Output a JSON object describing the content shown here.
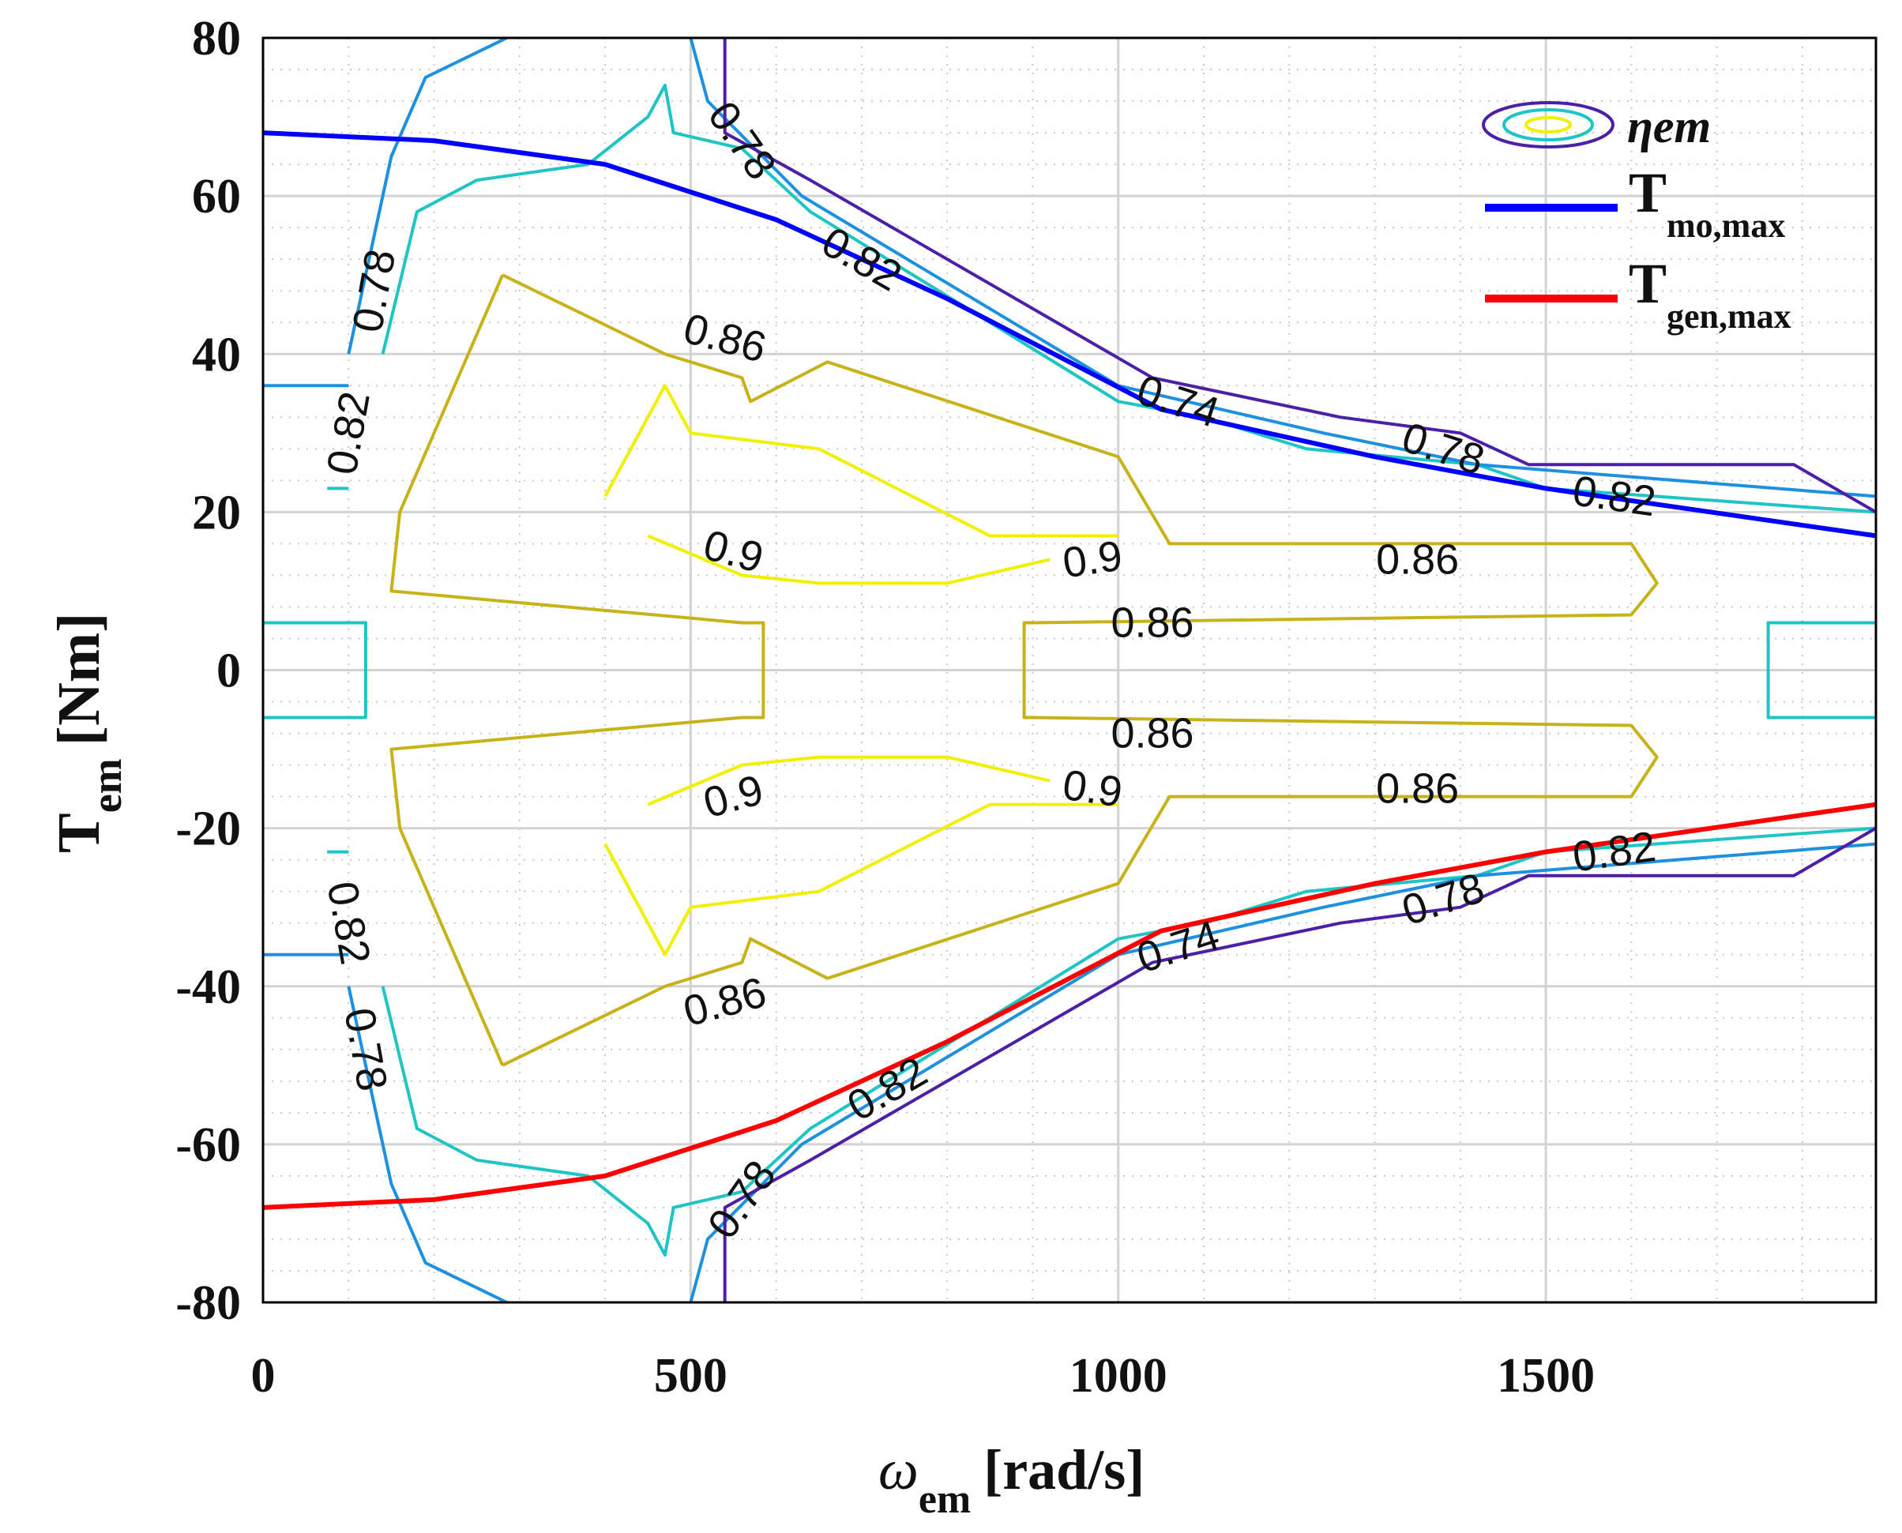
{
  "chart_data": {
    "type": "contour",
    "title": "",
    "xlabel": {
      "symbol": "ω",
      "subscript": "em",
      "unit": "[rad/s]"
    },
    "ylabel": {
      "symbol": "T",
      "subscript": "em",
      "unit": "[Nm]"
    },
    "xlim": [
      0,
      1886
    ],
    "ylim": [
      -80,
      80
    ],
    "xticks": [
      0,
      500,
      1000,
      1500
    ],
    "yticks": [
      80,
      60,
      40,
      20,
      0,
      -20,
      -40,
      -60,
      -80
    ],
    "grid": true,
    "legend_position": "top-right",
    "legend": [
      {
        "name": "ηem",
        "kind": "contour-icon"
      },
      {
        "name": "T",
        "sub": "mo,max",
        "color": "#0000ff"
      },
      {
        "name": "T",
        "sub": "gen,max",
        "color": "#ff0000"
      }
    ],
    "level_colors": {
      "0.74": "#4b1fa6",
      "0.78": "#1e90e0",
      "0.82": "#1fc4c4",
      "0.86": "#c8b21a",
      "0.9": "#f0f000"
    },
    "torque_limits": [
      {
        "name": "T_mo,max",
        "color": "#0000ff",
        "points": [
          [
            0,
            68
          ],
          [
            200,
            67
          ],
          [
            400,
            64
          ],
          [
            600,
            57
          ],
          [
            800,
            47
          ],
          [
            1050,
            33
          ],
          [
            1300,
            27
          ],
          [
            1500,
            23
          ],
          [
            1886,
            17
          ]
        ]
      },
      {
        "name": "T_gen,max",
        "color": "#ff0000",
        "points": [
          [
            0,
            -68
          ],
          [
            200,
            -67
          ],
          [
            400,
            -64
          ],
          [
            600,
            -57
          ],
          [
            800,
            -47
          ],
          [
            1050,
            -33
          ],
          [
            1300,
            -27
          ],
          [
            1500,
            -23
          ],
          [
            1886,
            -17
          ]
        ]
      }
    ],
    "contours": [
      {
        "level": "0.9",
        "points": [
          [
            400,
            22
          ],
          [
            470,
            36
          ],
          [
            500,
            30
          ],
          [
            650,
            28
          ],
          [
            850,
            17
          ],
          [
            1000,
            17
          ]
        ]
      },
      {
        "level": "0.9",
        "points": [
          [
            400,
            -22
          ],
          [
            470,
            -36
          ],
          [
            500,
            -30
          ],
          [
            650,
            -28
          ],
          [
            850,
            -17
          ],
          [
            1000,
            -17
          ]
        ]
      },
      {
        "level": "0.9",
        "points": [
          [
            450,
            17
          ],
          [
            560,
            12
          ],
          [
            650,
            11
          ],
          [
            800,
            11
          ],
          [
            920,
            14
          ]
        ]
      },
      {
        "level": "0.9",
        "points": [
          [
            450,
            -17
          ],
          [
            560,
            -12
          ],
          [
            650,
            -11
          ],
          [
            800,
            -11
          ],
          [
            920,
            -14
          ]
        ]
      },
      {
        "level": "0.86",
        "points": [
          [
            280,
            50
          ],
          [
            160,
            20
          ],
          [
            150,
            10
          ],
          [
            560,
            6
          ],
          [
            585,
            6
          ],
          [
            585,
            -6
          ],
          [
            560,
            -6
          ],
          [
            150,
            -10
          ],
          [
            160,
            -20
          ],
          [
            280,
            -50
          ]
        ]
      },
      {
        "level": "0.86",
        "points": [
          [
            280,
            50
          ],
          [
            470,
            40
          ],
          [
            560,
            37
          ],
          [
            570,
            34
          ],
          [
            660,
            39
          ],
          [
            1000,
            27
          ],
          [
            1060,
            16
          ],
          [
            1600,
            16
          ],
          [
            1630,
            11
          ],
          [
            1600,
            7
          ],
          [
            900,
            6
          ],
          [
            890,
            6
          ],
          [
            890,
            -6
          ],
          [
            900,
            -6
          ],
          [
            1600,
            -7
          ],
          [
            1630,
            -11
          ],
          [
            1600,
            -16
          ],
          [
            1060,
            -16
          ],
          [
            1000,
            -27
          ],
          [
            660,
            -39
          ],
          [
            570,
            -34
          ],
          [
            560,
            -37
          ],
          [
            470,
            -40
          ],
          [
            280,
            -50
          ]
        ]
      },
      {
        "level": "0.82",
        "points": [
          [
            75,
            23
          ],
          [
            100,
            23
          ]
        ]
      },
      {
        "level": "0.82",
        "points": [
          [
            75,
            -23
          ],
          [
            100,
            -23
          ]
        ]
      },
      {
        "level": "0.82",
        "points": [
          [
            0,
            6
          ],
          [
            120,
            6
          ],
          [
            120,
            -6
          ],
          [
            0,
            -6
          ]
        ]
      },
      {
        "level": "0.82",
        "points": [
          [
            1886,
            6
          ],
          [
            1760,
            6
          ],
          [
            1760,
            -6
          ],
          [
            1886,
            -6
          ]
        ]
      },
      {
        "level": "0.82",
        "points": [
          [
            140,
            40
          ],
          [
            180,
            58
          ],
          [
            250,
            62
          ],
          [
            380,
            64
          ],
          [
            450,
            70
          ],
          [
            470,
            74
          ],
          [
            480,
            68
          ],
          [
            560,
            66
          ],
          [
            640,
            58
          ],
          [
            1000,
            34
          ],
          [
            1100,
            32
          ],
          [
            1220,
            28
          ],
          [
            1420,
            26
          ],
          [
            1500,
            23
          ],
          [
            1886,
            20
          ]
        ]
      },
      {
        "level": "0.82",
        "points": [
          [
            140,
            -40
          ],
          [
            180,
            -58
          ],
          [
            250,
            -62
          ],
          [
            380,
            -64
          ],
          [
            450,
            -70
          ],
          [
            470,
            -74
          ],
          [
            480,
            -68
          ],
          [
            560,
            -66
          ],
          [
            640,
            -58
          ],
          [
            1000,
            -34
          ],
          [
            1100,
            -32
          ],
          [
            1220,
            -28
          ],
          [
            1420,
            -26
          ],
          [
            1500,
            -23
          ],
          [
            1886,
            -20
          ]
        ]
      },
      {
        "level": "0.78",
        "points": [
          [
            0,
            36
          ],
          [
            100,
            36
          ]
        ]
      },
      {
        "level": "0.78",
        "points": [
          [
            0,
            -36
          ],
          [
            100,
            -36
          ]
        ]
      },
      {
        "level": "0.78",
        "points": [
          [
            100,
            40
          ],
          [
            150,
            65
          ],
          [
            190,
            75
          ],
          [
            285,
            80
          ]
        ]
      },
      {
        "level": "0.78",
        "points": [
          [
            100,
            -40
          ],
          [
            150,
            -65
          ],
          [
            190,
            -75
          ],
          [
            285,
            -80
          ]
        ]
      },
      {
        "level": "0.78",
        "points": [
          [
            500,
            80
          ],
          [
            520,
            72
          ],
          [
            630,
            60
          ],
          [
            1000,
            36
          ],
          [
            1240,
            30
          ],
          [
            1420,
            26
          ],
          [
            1886,
            22
          ]
        ]
      },
      {
        "level": "0.78",
        "points": [
          [
            500,
            -80
          ],
          [
            520,
            -72
          ],
          [
            630,
            -60
          ],
          [
            1000,
            -36
          ],
          [
            1240,
            -30
          ],
          [
            1420,
            -26
          ],
          [
            1886,
            -22
          ]
        ]
      },
      {
        "level": "0.74",
        "points": [
          [
            540,
            80
          ],
          [
            540,
            68
          ],
          [
            640,
            62
          ],
          [
            1040,
            37
          ],
          [
            1260,
            32
          ],
          [
            1400,
            30
          ],
          [
            1480,
            26
          ],
          [
            1790,
            26
          ],
          [
            1886,
            20
          ]
        ]
      },
      {
        "level": "0.74",
        "points": [
          [
            540,
            -80
          ],
          [
            540,
            -68
          ],
          [
            640,
            -62
          ],
          [
            1040,
            -37
          ],
          [
            1260,
            -32
          ],
          [
            1400,
            -30
          ],
          [
            1480,
            -26
          ],
          [
            1790,
            -26
          ],
          [
            1886,
            -20
          ]
        ]
      }
    ],
    "contour_labels": [
      {
        "text": "0.78",
        "x": 560,
        "y": 67,
        "angle": 55
      },
      {
        "text": "0.82",
        "x": 700,
        "y": 52,
        "angle": 30
      },
      {
        "text": "0.74",
        "x": 1070,
        "y": 34,
        "angle": 18
      },
      {
        "text": "0.78",
        "x": 1380,
        "y": 28,
        "angle": 18
      },
      {
        "text": "0.82",
        "x": 1580,
        "y": 22,
        "angle": 8
      },
      {
        "text": "0.78",
        "x": 130,
        "y": 48,
        "angle": -80
      },
      {
        "text": "0.82",
        "x": 100,
        "y": 30,
        "angle": -80
      },
      {
        "text": "0.86",
        "x": 540,
        "y": 42,
        "angle": 15
      },
      {
        "text": "0.9",
        "x": 550,
        "y": 15,
        "angle": 15
      },
      {
        "text": "0.9",
        "x": 970,
        "y": 14,
        "angle": -8
      },
      {
        "text": "0.86",
        "x": 1350,
        "y": 14,
        "angle": 0
      },
      {
        "text": "0.86",
        "x": 1040,
        "y": 6,
        "angle": 0
      },
      {
        "text": "0.86",
        "x": 1040,
        "y": -8,
        "angle": 0
      },
      {
        "text": "0.9",
        "x": 550,
        "y": -16,
        "angle": -15
      },
      {
        "text": "0.9",
        "x": 970,
        "y": -15,
        "angle": 8
      },
      {
        "text": "0.86",
        "x": 1350,
        "y": -15,
        "angle": 0
      },
      {
        "text": "0.82",
        "x": 1580,
        "y": -23,
        "angle": -8
      },
      {
        "text": "0.78",
        "x": 1380,
        "y": -29,
        "angle": -18
      },
      {
        "text": "0.74",
        "x": 1070,
        "y": -35,
        "angle": -18
      },
      {
        "text": "0.86",
        "x": 540,
        "y": -42,
        "angle": -15
      },
      {
        "text": "0.82",
        "x": 730,
        "y": -53,
        "angle": -30
      },
      {
        "text": "0.78",
        "x": 560,
        "y": -67,
        "angle": -55
      },
      {
        "text": "0.82",
        "x": 100,
        "y": -32,
        "angle": 80
      },
      {
        "text": "0.78",
        "x": 120,
        "y": -48,
        "angle": 80
      }
    ]
  }
}
